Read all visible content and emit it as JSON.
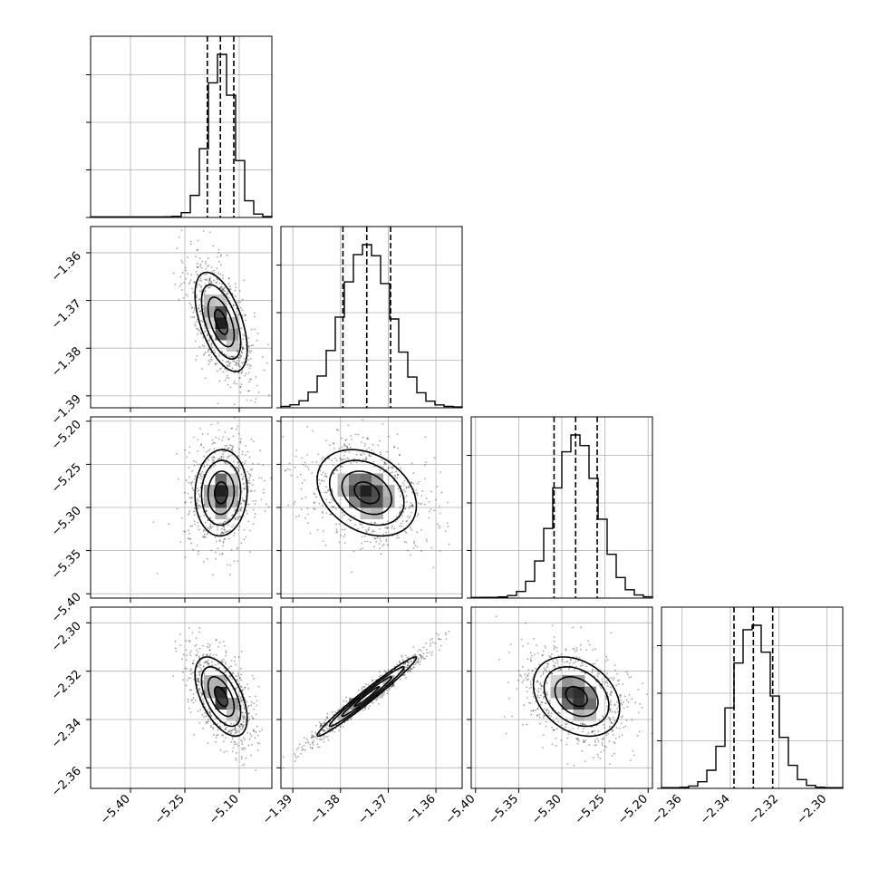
{
  "chart_data": {
    "type": "corner",
    "title": "",
    "parameters": [
      {
        "mean": -5.15,
        "sd": 0.036,
        "qlo": -5.188,
        "qmid": -5.152,
        "qhi": -5.115,
        "range": [
          -5.51,
          -5.01
        ],
        "ticks": [
          -5.4,
          -5.25,
          -5.1
        ],
        "tick_labels": [
          "−5.40",
          "−5.25",
          "−5.10"
        ]
      },
      {
        "mean": -1.3745,
        "sd": 0.0052,
        "qlo": -1.3795,
        "qmid": -1.3745,
        "qhi": -1.3695,
        "range": [
          -1.3925,
          -1.3545
        ],
        "ticks": [
          -1.39,
          -1.38,
          -1.37,
          -1.36
        ],
        "tick_labels": [
          "−1.39",
          "−1.38",
          "−1.37",
          "−1.36"
        ]
      },
      {
        "mean": -5.283,
        "sd": 0.025,
        "qlo": -5.309,
        "qmid": -5.284,
        "qhi": -5.259,
        "range": [
          -5.405,
          -5.195
        ],
        "ticks": [
          -5.4,
          -5.35,
          -5.3,
          -5.25,
          -5.2
        ],
        "tick_labels": [
          "−5.40",
          "−5.35",
          "−5.30",
          "−5.25",
          "−5.20"
        ]
      },
      {
        "mean": -2.3305,
        "sd": 0.0082,
        "qlo": -2.3385,
        "qmid": -2.3305,
        "qhi": -2.3225,
        "range": [
          -2.3685,
          -2.2935
        ],
        "ticks": [
          -2.36,
          -2.34,
          -2.32,
          -2.3
        ],
        "tick_labels": [
          "−2.36",
          "−2.34",
          "−2.32",
          "−2.30"
        ]
      }
    ],
    "correlations": [
      {
        "i": 1,
        "j": 0,
        "rho": -0.55
      },
      {
        "i": 2,
        "j": 0,
        "rho": 0.05
      },
      {
        "i": 2,
        "j": 1,
        "rho": -0.3
      },
      {
        "i": 3,
        "j": 0,
        "rho": -0.55
      },
      {
        "i": 3,
        "j": 1,
        "rho": 0.98
      },
      {
        "i": 3,
        "j": 2,
        "rho": -0.3
      }
    ],
    "contour_levels_sigma": [
      0.5,
      1.0,
      1.5,
      2.0
    ],
    "grid": true,
    "colors": {
      "hist": "#000000",
      "points": "#000000",
      "contour": "#000000"
    }
  }
}
